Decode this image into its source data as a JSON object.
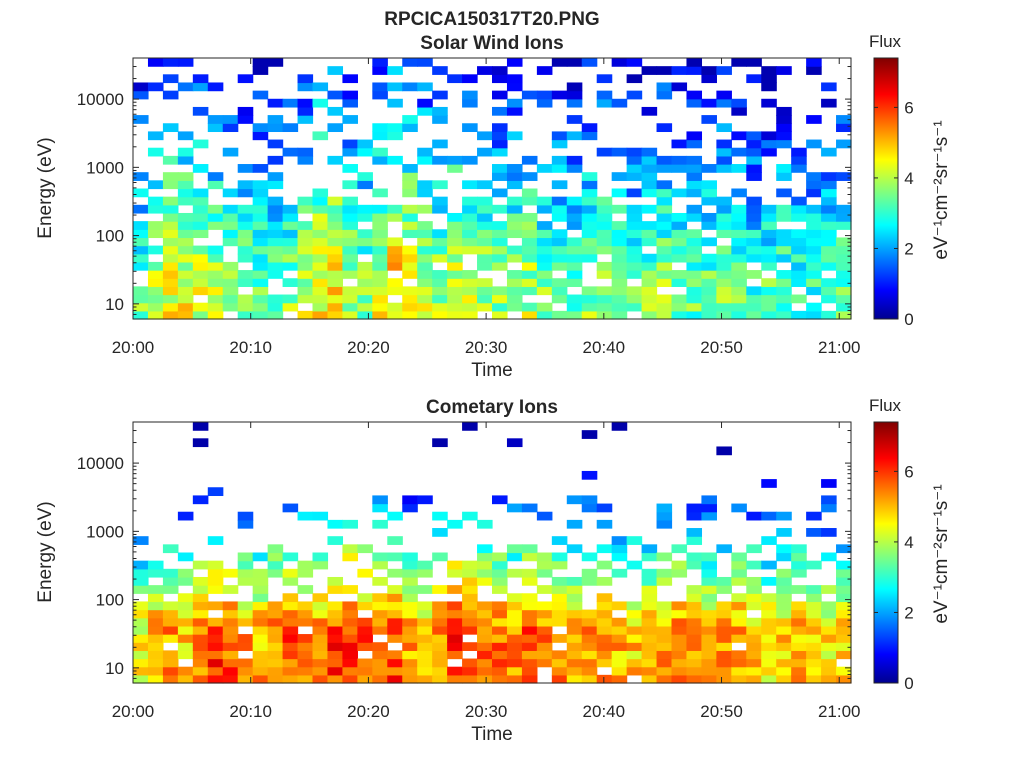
{
  "figure": {
    "title": "RPCICA150317T20.PNG"
  },
  "colorbar": {
    "title": "Flux",
    "label": "eV⁻¹cm⁻²sr⁻¹s⁻¹",
    "ticks": [
      "0",
      "2",
      "4",
      "6"
    ],
    "range": [
      0,
      7.4
    ],
    "colormap": "jet"
  },
  "chart_data": [
    {
      "type": "heatmap",
      "title": "Solar Wind Ions",
      "xlabel": "Time",
      "ylabel": "Energy (eV)",
      "x_ticks": [
        "20:00",
        "20:10",
        "20:20",
        "20:30",
        "20:40",
        "20:50",
        "21:00"
      ],
      "y_ticks": [
        "10",
        "100",
        "1000",
        "10000"
      ],
      "y_scale": "log",
      "ylim": [
        6,
        40000
      ],
      "xlim": [
        "20:00",
        "21:01"
      ],
      "z_label": "Flux",
      "z_range": [
        0,
        7.4
      ],
      "profile_low_energy_flux": [
        3.5,
        4.0,
        4.5,
        4.5,
        4.3,
        4.0,
        4.2,
        3.8,
        3.5,
        3.6,
        3.8,
        4.2,
        4.6,
        4.8,
        4.0,
        3.8,
        4.4,
        5.0,
        4.6,
        4.2,
        4.0,
        4.4,
        4.2,
        4.0,
        3.8,
        3.9,
        4.1,
        3.7,
        3.5,
        3.6,
        3.8,
        3.9,
        3.7,
        3.4,
        3.6,
        3.8,
        3.6,
        3.4,
        3.5,
        3.7,
        3.4,
        3.2,
        3.4,
        3.5,
        3.3,
        3.2,
        3.4,
        3.6
      ]
    },
    {
      "type": "heatmap",
      "title": "Cometary Ions",
      "xlabel": "Time",
      "ylabel": "Energy (eV)",
      "x_ticks": [
        "20:00",
        "20:10",
        "20:20",
        "20:30",
        "20:40",
        "20:50",
        "21:00"
      ],
      "y_ticks": [
        "10",
        "100",
        "1000",
        "10000"
      ],
      "y_scale": "log",
      "ylim": [
        6,
        40000
      ],
      "xlim": [
        "20:00",
        "21:01"
      ],
      "z_label": "Flux",
      "z_range": [
        0,
        7.4
      ],
      "profile_low_energy_flux": [
        4.6,
        5.2,
        5.4,
        5.0,
        5.6,
        6.0,
        5.8,
        5.4,
        5.2,
        5.6,
        5.8,
        5.4,
        5.6,
        6.0,
        6.2,
        5.8,
        5.6,
        6.0,
        5.4,
        5.0,
        5.6,
        6.2,
        6.0,
        5.8,
        5.6,
        5.4,
        5.8,
        5.6,
        5.4,
        5.2,
        5.4,
        5.6,
        5.2,
        5.0,
        5.2,
        5.4,
        5.6,
        5.2,
        5.0,
        5.2,
        5.4,
        5.0,
        4.8,
        5.0,
        5.2,
        5.0,
        4.8,
        5.0
      ]
    }
  ]
}
